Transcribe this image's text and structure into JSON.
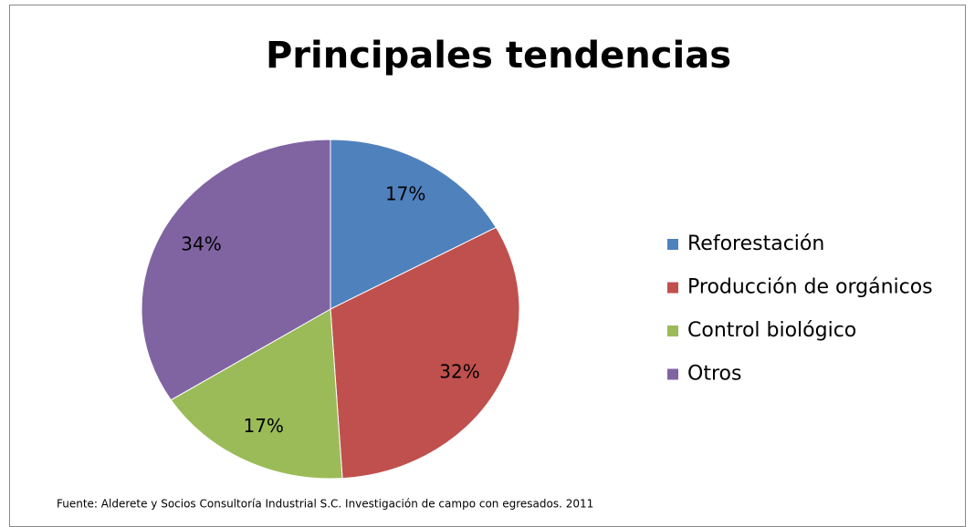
{
  "chart_data": {
    "type": "pie",
    "title": "Principales tendencias",
    "categories": [
      "Reforestación",
      "Producción de orgánicos",
      "Control biológico",
      "Otros"
    ],
    "values": [
      17,
      32,
      17,
      34
    ],
    "value_labels": [
      "17%",
      "32%",
      "17%",
      "34%"
    ],
    "colors": [
      "#4f81bd",
      "#c0504d",
      "#9bbb59",
      "#8064a2"
    ],
    "legend": "right",
    "source": "Fuente: Alderete y Socios Consultoría Industrial S.C. Investigación de campo con egresados. 2011"
  }
}
